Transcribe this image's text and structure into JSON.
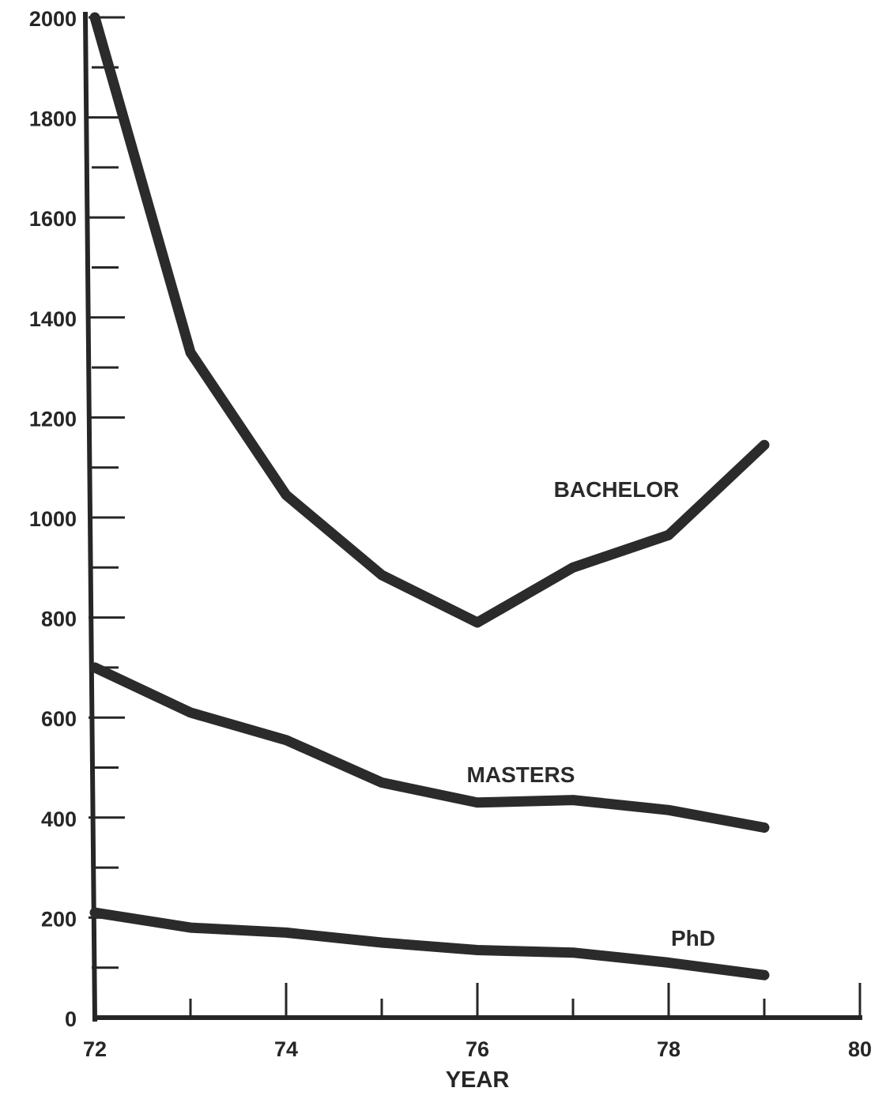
{
  "chart_data": {
    "type": "line",
    "xlabel": "YEAR",
    "ylabel": "",
    "xlim": [
      72,
      80
    ],
    "ylim": [
      0,
      2000
    ],
    "x_ticks": [
      72,
      74,
      76,
      78,
      80
    ],
    "x_minor_ticks": [
      73,
      75,
      77,
      79
    ],
    "y_ticks": [
      0,
      200,
      400,
      600,
      800,
      1000,
      1200,
      1400,
      1600,
      1800,
      2000
    ],
    "y_minor_ticks": [
      100,
      300,
      500,
      700,
      900,
      1100,
      1300,
      1500,
      1700,
      1900
    ],
    "grid": false,
    "legend": "inline labels",
    "x": [
      72,
      73,
      74,
      75,
      76,
      77,
      78,
      79
    ],
    "series": [
      {
        "name": "BACHELOR",
        "values": [
          2000,
          1330,
          1045,
          885,
          790,
          900,
          965,
          1145
        ]
      },
      {
        "name": "MASTERS",
        "values": [
          700,
          610,
          555,
          470,
          430,
          435,
          415,
          380
        ]
      },
      {
        "name": "PhD",
        "values": [
          210,
          180,
          170,
          150,
          135,
          130,
          110,
          85
        ]
      }
    ]
  }
}
